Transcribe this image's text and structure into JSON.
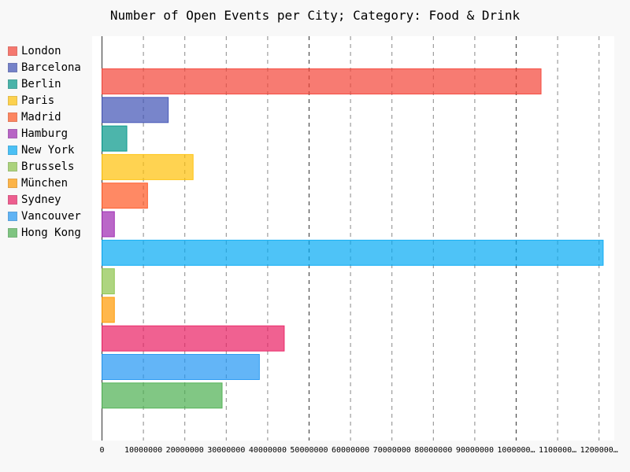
{
  "chart_data": {
    "type": "bar",
    "orientation": "horizontal",
    "title": "Number of Open Events per City; Category: Food & Drink",
    "categories": [
      "London",
      "Barcelona",
      "Berlin",
      "Paris",
      "Madrid",
      "Hamburg",
      "New York",
      "Brussels",
      "München",
      "Sydney",
      "Vancouver",
      "Hong Kong"
    ],
    "values": [
      106000000,
      16000000,
      6000000,
      22000000,
      11000000,
      3000000,
      121000000,
      3000000,
      3000000,
      44000000,
      38000000,
      29000000
    ],
    "colors": [
      "#f44336",
      "#3f51b5",
      "#009688",
      "#ffc107",
      "#ff5722",
      "#9c27b0",
      "#03a9f4",
      "#8bc34a",
      "#ff9800",
      "#e91e63",
      "#2196f3",
      "#4caf50"
    ],
    "xticks": [
      "0",
      "10000000",
      "20000000",
      "30000000",
      "40000000",
      "50000000",
      "60000000",
      "70000000",
      "80000000",
      "90000000",
      "1000000…",
      "1100000…",
      "1200000…"
    ],
    "xlim": [
      0,
      125000000
    ],
    "grid": true,
    "legend_position": "left"
  }
}
